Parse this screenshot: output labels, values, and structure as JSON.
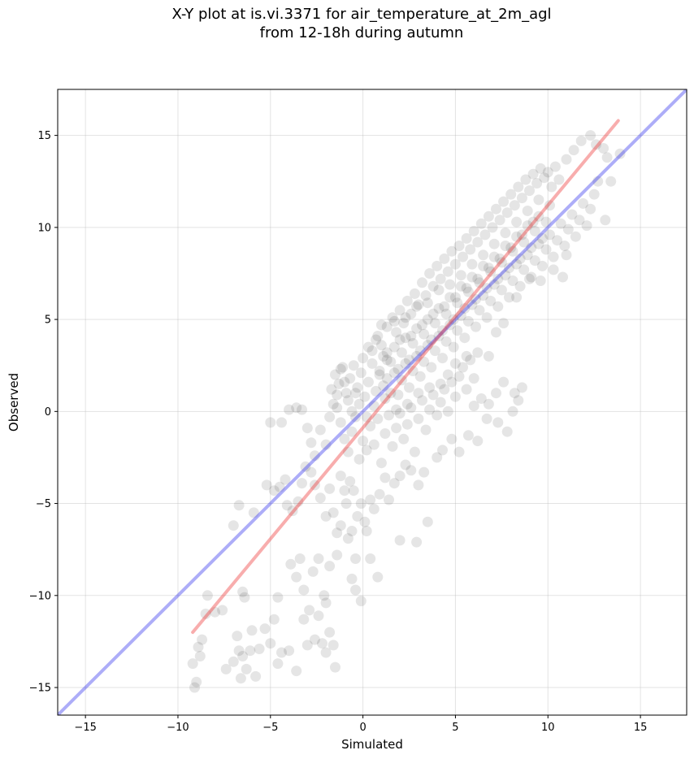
{
  "chart_data": {
    "type": "scatter",
    "title_line1": "X-Y plot at is.vi.3371 for air_temperature_at_2m_agl",
    "title_line2": "from 12-18h during autumn",
    "xlabel": "Simulated",
    "ylabel": "Observed",
    "xlim": [
      -16.5,
      17.5
    ],
    "ylim": [
      -16.5,
      17.5
    ],
    "xticks": [
      -15,
      -10,
      -5,
      0,
      5,
      10,
      15
    ],
    "yticks": [
      -15,
      -10,
      -5,
      0,
      5,
      10,
      15
    ],
    "tick_labels": [
      "−15",
      "−10",
      "−5",
      "0",
      "5",
      "10",
      "15"
    ],
    "grid": true,
    "colors": {
      "points": "#000000",
      "identity_line": "#3333ee",
      "fit_line": "#ee3333"
    },
    "identity_line": {
      "x": [
        -16.5,
        17.5
      ],
      "y": [
        -16.5,
        17.5
      ]
    },
    "fit_line": {
      "x": [
        -9.2,
        13.8
      ],
      "y": [
        -12.0,
        15.8
      ]
    },
    "points": [
      [
        -9.2,
        -13.7
      ],
      [
        -9.0,
        -14.7
      ],
      [
        -9.1,
        -15.0
      ],
      [
        -8.8,
        -13.3
      ],
      [
        -8.9,
        -12.8
      ],
      [
        -8.7,
        -12.4
      ],
      [
        -8.5,
        -11.0
      ],
      [
        -8.4,
        -10.0
      ],
      [
        -8.0,
        -10.9
      ],
      [
        -7.6,
        -10.8
      ],
      [
        -7.4,
        -14.0
      ],
      [
        -7.0,
        -13.6
      ],
      [
        -6.8,
        -12.2
      ],
      [
        -6.7,
        -13.0
      ],
      [
        -6.6,
        -14.5
      ],
      [
        -6.5,
        -13.3
      ],
      [
        -6.4,
        -10.1
      ],
      [
        -6.5,
        -9.8
      ],
      [
        -6.3,
        -14.0
      ],
      [
        -6.0,
        -11.9
      ],
      [
        -6.1,
        -13.0
      ],
      [
        -5.8,
        -14.4
      ],
      [
        -5.6,
        -12.9
      ],
      [
        -5.3,
        -11.8
      ],
      [
        -5.0,
        -12.6
      ],
      [
        -4.8,
        -11.3
      ],
      [
        -4.6,
        -13.7
      ],
      [
        -4.4,
        -13.1
      ],
      [
        -4.6,
        -10.1
      ],
      [
        -4.0,
        -13.0
      ],
      [
        -3.6,
        -14.1
      ],
      [
        -3.2,
        -11.3
      ],
      [
        -3.0,
        -12.7
      ],
      [
        -2.9,
        -10.8
      ],
      [
        -2.6,
        -12.4
      ],
      [
        -2.4,
        -11.1
      ],
      [
        -2.2,
        -12.6
      ],
      [
        -2.0,
        -13.1
      ],
      [
        -1.8,
        -12.0
      ],
      [
        -1.6,
        -12.7
      ],
      [
        -1.5,
        -13.9
      ],
      [
        -2.0,
        -10.4
      ],
      [
        -2.1,
        -10.0
      ],
      [
        -3.4,
        -8.0
      ],
      [
        -3.6,
        -9.0
      ],
      [
        -3.9,
        -8.3
      ],
      [
        -3.2,
        -9.7
      ],
      [
        -2.7,
        -8.7
      ],
      [
        -2.4,
        -8.0
      ],
      [
        -1.8,
        -8.4
      ],
      [
        -1.4,
        -7.8
      ],
      [
        -1.2,
        -6.2
      ],
      [
        -0.8,
        -6.9
      ],
      [
        -0.6,
        -6.5
      ],
      [
        -0.4,
        -8.0
      ],
      [
        -0.6,
        -9.1
      ],
      [
        -0.4,
        -9.7
      ],
      [
        -0.1,
        -10.3
      ],
      [
        0.4,
        -8.0
      ],
      [
        0.8,
        -9.0
      ],
      [
        -6.7,
        -5.1
      ],
      [
        -7.0,
        -6.2
      ],
      [
        -5.9,
        -5.5
      ],
      [
        -5.2,
        -4.0
      ],
      [
        -4.8,
        -4.3
      ],
      [
        -4.5,
        -4.1
      ],
      [
        -4.2,
        -3.7
      ],
      [
        -4.1,
        -5.1
      ],
      [
        -3.8,
        -5.4
      ],
      [
        -3.5,
        -4.9
      ],
      [
        -3.3,
        -3.9
      ],
      [
        -3.1,
        -3.0
      ],
      [
        -2.8,
        -3.3
      ],
      [
        -2.6,
        -4.0
      ],
      [
        -2.3,
        -4.7
      ],
      [
        -2.0,
        -5.7
      ],
      [
        -1.8,
        -4.2
      ],
      [
        -1.6,
        -5.5
      ],
      [
        -1.4,
        -6.6
      ],
      [
        -1.2,
        -3.5
      ],
      [
        -1.0,
        -4.3
      ],
      [
        -0.9,
        -5.0
      ],
      [
        -0.7,
        -3.8
      ],
      [
        -0.5,
        -4.3
      ],
      [
        -0.3,
        -5.7
      ],
      [
        -0.1,
        -5.0
      ],
      [
        0.1,
        -6.0
      ],
      [
        0.2,
        -6.5
      ],
      [
        0.4,
        -4.8
      ],
      [
        0.6,
        -5.3
      ],
      [
        0.9,
        -4.5
      ],
      [
        1.2,
        -3.6
      ],
      [
        1.4,
        -4.8
      ],
      [
        1.7,
        -3.9
      ],
      [
        2.0,
        -3.5
      ],
      [
        2.3,
        -2.9
      ],
      [
        2.6,
        -3.2
      ],
      [
        3.0,
        -4.0
      ],
      [
        3.3,
        -3.3
      ],
      [
        3.5,
        -6.0
      ],
      [
        2.0,
        -7.0
      ],
      [
        2.9,
        -7.1
      ],
      [
        4.0,
        -2.5
      ],
      [
        4.3,
        -2.1
      ],
      [
        4.8,
        -1.5
      ],
      [
        5.2,
        -2.2
      ],
      [
        5.7,
        -1.3
      ],
      [
        6.2,
        -1.6
      ],
      [
        6.7,
        -0.4
      ],
      [
        7.3,
        -0.6
      ],
      [
        7.8,
        -1.1
      ],
      [
        8.1,
        0.0
      ],
      [
        8.6,
        1.3
      ],
      [
        8.4,
        0.6
      ],
      [
        8.2,
        1.0
      ],
      [
        7.6,
        1.6
      ],
      [
        7.2,
        1.0
      ],
      [
        6.8,
        0.4
      ],
      [
        6.4,
        0.7
      ],
      [
        6.0,
        0.3
      ],
      [
        -5.0,
        -0.6
      ],
      [
        -4.4,
        -0.6
      ],
      [
        -4.0,
        0.1
      ],
      [
        -3.6,
        0.2
      ],
      [
        -3.3,
        0.1
      ],
      [
        -3.0,
        -0.9
      ],
      [
        -2.8,
        -1.7
      ],
      [
        -2.6,
        -2.4
      ],
      [
        -2.3,
        -1.0
      ],
      [
        -2.0,
        -1.8
      ],
      [
        -1.8,
        -0.3
      ],
      [
        -1.6,
        0.4
      ],
      [
        -1.4,
        0.9
      ],
      [
        -1.2,
        -0.6
      ],
      [
        -1.0,
        -1.5
      ],
      [
        -0.8,
        -2.2
      ],
      [
        -0.6,
        -1.1
      ],
      [
        -0.4,
        -0.3
      ],
      [
        -0.2,
        -2.6
      ],
      [
        0.0,
        -1.6
      ],
      [
        0.2,
        -2.1
      ],
      [
        0.4,
        -0.8
      ],
      [
        0.6,
        -1.8
      ],
      [
        0.8,
        -0.4
      ],
      [
        1.0,
        -2.8
      ],
      [
        1.2,
        -1.2
      ],
      [
        1.4,
        -0.2
      ],
      [
        1.6,
        -1.9
      ],
      [
        1.8,
        -0.9
      ],
      [
        2.0,
        -0.1
      ],
      [
        2.2,
        -1.5
      ],
      [
        2.4,
        -0.7
      ],
      [
        2.6,
        0.2
      ],
      [
        2.8,
        -2.2
      ],
      [
        3.0,
        -0.4
      ],
      [
        3.2,
        0.6
      ],
      [
        3.4,
        -1.0
      ],
      [
        3.6,
        0.1
      ],
      [
        3.8,
        0.9
      ],
      [
        4.0,
        -0.2
      ],
      [
        4.2,
        0.5
      ],
      [
        4.4,
        1.2
      ],
      [
        4.6,
        0.0
      ],
      [
        4.8,
        1.6
      ],
      [
        5.0,
        0.8
      ],
      [
        5.2,
        1.9
      ],
      [
        5.4,
        2.4
      ],
      [
        5.6,
        1.2
      ],
      [
        5.8,
        2.8
      ],
      [
        6.0,
        1.8
      ],
      [
        -1.7,
        1.2
      ],
      [
        -1.5,
        2.0
      ],
      [
        -1.3,
        1.5
      ],
      [
        -1.1,
        2.4
      ],
      [
        -0.9,
        1.0
      ],
      [
        -0.7,
        1.8
      ],
      [
        -0.5,
        2.5
      ],
      [
        -0.3,
        1.3
      ],
      [
        -0.1,
        2.1
      ],
      [
        0.1,
        0.8
      ],
      [
        0.3,
        1.6
      ],
      [
        0.5,
        2.6
      ],
      [
        0.7,
        1.1
      ],
      [
        0.9,
        2.2
      ],
      [
        1.1,
        3.0
      ],
      [
        1.3,
        1.8
      ],
      [
        1.5,
        2.7
      ],
      [
        1.7,
        3.5
      ],
      [
        1.9,
        2.3
      ],
      [
        2.1,
        3.2
      ],
      [
        2.3,
        4.0
      ],
      [
        2.5,
        2.8
      ],
      [
        2.7,
        3.7
      ],
      [
        2.9,
        4.5
      ],
      [
        3.1,
        3.3
      ],
      [
        3.3,
        4.2
      ],
      [
        3.5,
        5.0
      ],
      [
        3.7,
        3.9
      ],
      [
        3.9,
        4.8
      ],
      [
        4.1,
        5.6
      ],
      [
        4.3,
        4.4
      ],
      [
        4.5,
        5.3
      ],
      [
        4.7,
        6.2
      ],
      [
        4.9,
        5.0
      ],
      [
        5.1,
        5.9
      ],
      [
        5.3,
        6.8
      ],
      [
        5.5,
        5.6
      ],
      [
        5.7,
        6.5
      ],
      [
        5.9,
        7.3
      ],
      [
        6.1,
        6.1
      ],
      [
        6.3,
        7.0
      ],
      [
        6.5,
        7.9
      ],
      [
        6.7,
        6.7
      ],
      [
        6.9,
        7.6
      ],
      [
        7.1,
        8.4
      ],
      [
        7.3,
        7.2
      ],
      [
        7.5,
        8.1
      ],
      [
        7.7,
        9.0
      ],
      [
        7.9,
        7.8
      ],
      [
        8.1,
        8.7
      ],
      [
        8.3,
        9.5
      ],
      [
        8.5,
        8.3
      ],
      [
        8.7,
        9.2
      ],
      [
        8.9,
        10.1
      ],
      [
        9.1,
        8.9
      ],
      [
        9.3,
        9.8
      ],
      [
        9.5,
        10.6
      ],
      [
        9.7,
        9.4
      ],
      [
        9.9,
        10.3
      ],
      [
        10.1,
        11.2
      ],
      [
        0.5,
        3.3
      ],
      [
        0.8,
        4.1
      ],
      [
        1.0,
        3.6
      ],
      [
        1.3,
        4.6
      ],
      [
        1.6,
        5.1
      ],
      [
        1.8,
        4.3
      ],
      [
        2.0,
        5.5
      ],
      [
        2.2,
        4.8
      ],
      [
        2.4,
        6.0
      ],
      [
        2.6,
        5.3
      ],
      [
        2.8,
        6.4
      ],
      [
        3.0,
        5.8
      ],
      [
        3.2,
        7.0
      ],
      [
        3.4,
        6.3
      ],
      [
        3.6,
        7.5
      ],
      [
        3.8,
        6.8
      ],
      [
        4.0,
        7.9
      ],
      [
        4.2,
        7.2
      ],
      [
        4.4,
        8.3
      ],
      [
        4.6,
        7.6
      ],
      [
        4.8,
        8.7
      ],
      [
        5.0,
        8.0
      ],
      [
        5.2,
        9.0
      ],
      [
        5.4,
        8.4
      ],
      [
        5.6,
        9.4
      ],
      [
        5.8,
        8.8
      ],
      [
        6.0,
        9.8
      ],
      [
        6.2,
        9.2
      ],
      [
        6.4,
        10.2
      ],
      [
        6.6,
        9.6
      ],
      [
        6.8,
        10.6
      ],
      [
        7.0,
        10.0
      ],
      [
        7.2,
        11.0
      ],
      [
        7.4,
        10.4
      ],
      [
        7.6,
        11.4
      ],
      [
        7.8,
        10.8
      ],
      [
        8.0,
        11.8
      ],
      [
        8.2,
        11.2
      ],
      [
        8.4,
        12.2
      ],
      [
        8.6,
        11.6
      ],
      [
        8.8,
        12.6
      ],
      [
        9.0,
        12.0
      ],
      [
        9.2,
        12.9
      ],
      [
        9.4,
        12.4
      ],
      [
        9.6,
        13.2
      ],
      [
        9.8,
        12.7
      ],
      [
        10.0,
        13.0
      ],
      [
        10.2,
        12.2
      ],
      [
        10.4,
        13.3
      ],
      [
        10.6,
        12.6
      ],
      [
        0.9,
        2.0
      ],
      [
        1.1,
        1.4
      ],
      [
        1.3,
        2.8
      ],
      [
        1.5,
        1.0
      ],
      [
        1.7,
        2.1
      ],
      [
        1.9,
        0.9
      ],
      [
        2.1,
        1.7
      ],
      [
        2.3,
        2.6
      ],
      [
        2.5,
        1.3
      ],
      [
        2.7,
        2.2
      ],
      [
        2.9,
        3.0
      ],
      [
        3.1,
        1.9
      ],
      [
        3.3,
        2.7
      ],
      [
        3.5,
        3.6
      ],
      [
        3.7,
        2.4
      ],
      [
        3.9,
        3.3
      ],
      [
        4.1,
        4.1
      ],
      [
        4.3,
        2.9
      ],
      [
        4.5,
        3.8
      ],
      [
        4.7,
        4.7
      ],
      [
        4.9,
        3.5
      ],
      [
        5.1,
        4.4
      ],
      [
        5.3,
        5.2
      ],
      [
        5.5,
        4.0
      ],
      [
        5.7,
        4.9
      ],
      [
        5.9,
        5.8
      ],
      [
        6.1,
        4.6
      ],
      [
        6.3,
        5.5
      ],
      [
        6.5,
        6.3
      ],
      [
        6.7,
        5.1
      ],
      [
        6.9,
        6.0
      ],
      [
        7.1,
        6.9
      ],
      [
        7.3,
        5.7
      ],
      [
        7.5,
        6.6
      ],
      [
        7.7,
        7.4
      ],
      [
        7.9,
        6.2
      ],
      [
        8.1,
        7.1
      ],
      [
        8.3,
        8.0
      ],
      [
        8.5,
        6.8
      ],
      [
        8.7,
        7.7
      ],
      [
        8.9,
        8.5
      ],
      [
        9.1,
        7.3
      ],
      [
        9.3,
        8.2
      ],
      [
        9.5,
        9.1
      ],
      [
        9.7,
        7.9
      ],
      [
        9.9,
        8.8
      ],
      [
        10.1,
        9.6
      ],
      [
        10.3,
        8.4
      ],
      [
        10.5,
        9.3
      ],
      [
        10.7,
        10.2
      ],
      [
        10.9,
        9.0
      ],
      [
        11.1,
        9.9
      ],
      [
        11.3,
        10.7
      ],
      [
        11.5,
        9.5
      ],
      [
        11.7,
        10.4
      ],
      [
        11.9,
        11.3
      ],
      [
        12.1,
        10.1
      ],
      [
        12.3,
        11.0
      ],
      [
        12.5,
        11.8
      ],
      [
        12.7,
        12.5
      ],
      [
        11.0,
        13.7
      ],
      [
        11.4,
        14.2
      ],
      [
        11.8,
        14.7
      ],
      [
        12.3,
        15.0
      ],
      [
        12.6,
        14.5
      ],
      [
        13.0,
        14.3
      ],
      [
        13.2,
        13.8
      ],
      [
        13.4,
        12.5
      ],
      [
        13.9,
        14.0
      ],
      [
        13.1,
        10.4
      ],
      [
        10.3,
        7.7
      ],
      [
        10.8,
        7.3
      ],
      [
        11.0,
        8.5
      ],
      [
        9.6,
        7.1
      ],
      [
        9.0,
        7.2
      ],
      [
        8.3,
        6.2
      ],
      [
        7.6,
        4.8
      ],
      [
        7.2,
        4.3
      ],
      [
        6.8,
        3.0
      ],
      [
        6.2,
        3.2
      ],
      [
        5.6,
        3.0
      ],
      [
        5.0,
        2.6
      ],
      [
        4.6,
        2.0
      ],
      [
        4.2,
        1.5
      ],
      [
        3.6,
        1.3
      ],
      [
        3.0,
        1.0
      ],
      [
        2.4,
        0.4
      ],
      [
        1.8,
        0.1
      ],
      [
        1.2,
        0.7
      ],
      [
        0.6,
        0.3
      ],
      [
        0.2,
        -0.3
      ],
      [
        -0.2,
        0.4
      ],
      [
        -0.4,
        1.0
      ],
      [
        -0.6,
        0.0
      ],
      [
        -0.8,
        0.6
      ],
      [
        -1.0,
        1.6
      ],
      [
        -1.2,
        2.3
      ],
      [
        -1.4,
        0.2
      ],
      [
        0.0,
        2.9
      ],
      [
        0.3,
        3.5
      ],
      [
        0.7,
        3.9
      ],
      [
        1.0,
        4.7
      ],
      [
        1.3,
        3.2
      ],
      [
        1.7,
        4.9
      ],
      [
        2.0,
        3.9
      ],
      [
        2.3,
        5.1
      ],
      [
        2.6,
        4.1
      ],
      [
        2.9,
        5.7
      ],
      [
        3.2,
        4.7
      ],
      [
        3.5,
        5.9
      ],
      [
        3.8,
        5.3
      ],
      [
        4.1,
        6.6
      ],
      [
        4.4,
        5.7
      ],
      [
        4.7,
        6.9
      ],
      [
        5.0,
        6.2
      ],
      [
        5.3,
        7.4
      ],
      [
        5.6,
        6.7
      ],
      [
        5.9,
        8.0
      ],
      [
        6.2,
        7.2
      ],
      [
        6.5,
        8.5
      ],
      [
        6.8,
        7.8
      ],
      [
        7.1,
        9.1
      ],
      [
        7.4,
        8.3
      ],
      [
        7.7,
        9.7
      ],
      [
        8.0,
        8.9
      ],
      [
        8.3,
        10.3
      ],
      [
        8.6,
        9.6
      ],
      [
        8.9,
        10.9
      ],
      [
        9.2,
        10.3
      ],
      [
        9.5,
        11.5
      ]
    ]
  }
}
